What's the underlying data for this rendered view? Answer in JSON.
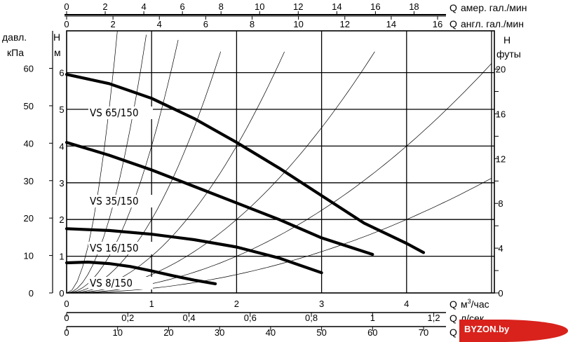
{
  "chart_data": {
    "type": "line",
    "series": [
      {
        "name": "VS 65/150",
        "x": [
          0,
          0.5,
          1.0,
          1.5,
          2.0,
          2.5,
          3.0,
          3.5,
          4.0,
          4.2
        ],
        "y": [
          5.95,
          5.7,
          5.3,
          4.75,
          4.1,
          3.4,
          2.65,
          1.9,
          1.35,
          1.1
        ]
      },
      {
        "name": "VS 35/150",
        "x": [
          0,
          0.5,
          1.0,
          1.5,
          2.0,
          2.5,
          3.0,
          3.6
        ],
        "y": [
          4.1,
          3.75,
          3.35,
          2.9,
          2.45,
          2.0,
          1.5,
          1.05
        ]
      },
      {
        "name": "VS 16/150",
        "x": [
          0,
          0.5,
          1.0,
          1.5,
          2.0,
          2.5,
          3.0
        ],
        "y": [
          1.75,
          1.7,
          1.6,
          1.45,
          1.25,
          0.95,
          0.55
        ]
      },
      {
        "name": "VS 8/150",
        "x": [
          0,
          0.25,
          0.5,
          0.75,
          1.0,
          1.25,
          1.5,
          1.75
        ],
        "y": [
          0.82,
          0.84,
          0.8,
          0.72,
          0.6,
          0.47,
          0.35,
          0.25
        ]
      }
    ],
    "system_curves_k": [
      20,
      8,
      4,
      2,
      1,
      0.5,
      0.25,
      0.125
    ],
    "xlim": [
      0,
      5
    ],
    "ylim": [
      0,
      6
    ],
    "grid": true,
    "axes": {
      "bottom": {
        "label_prefix": "Q",
        "label": "м³/час",
        "label_base": "м",
        "label_sup": "3",
        "label_rest": "/час",
        "ticks": [
          "0",
          "1",
          "2",
          "3",
          "4"
        ]
      },
      "bottom2": {
        "label_prefix": "Q",
        "label": "л/сек",
        "ticks": [
          "0",
          "0,2",
          "0,4",
          "0,6",
          "0,8",
          "1",
          "1,2"
        ]
      },
      "bottom3": {
        "label_prefix": "Q",
        "label": "",
        "ticks": [
          "0",
          "10",
          "20",
          "30",
          "40",
          "50",
          "60",
          "70"
        ]
      },
      "top1": {
        "label_prefix": "Q",
        "label": "амер. гал./мин",
        "ticks": [
          "0",
          "2",
          "4",
          "6",
          "8",
          "10",
          "12",
          "14",
          "16",
          "18"
        ]
      },
      "top2": {
        "label_prefix": "Q",
        "label": "англ. гал./мин",
        "ticks": [
          "0",
          "2",
          "4",
          "6",
          "8",
          "10",
          "12",
          "14",
          "16"
        ]
      },
      "left_m": {
        "label_letter": "H",
        "label": "м",
        "ticks": [
          "0",
          "1",
          "2",
          "3",
          "4",
          "5",
          "6"
        ]
      },
      "left_kpa": {
        "label_line1": "давл.",
        "label_line2": "кПа",
        "ticks": [
          "0",
          "10",
          "20",
          "30",
          "40",
          "50",
          "60"
        ]
      },
      "right_ft": {
        "label_letter": "H",
        "label": "футы",
        "ticks": [
          "0",
          "4",
          "8",
          "12",
          "16",
          "20"
        ]
      }
    }
  },
  "watermark": "BYZON.by"
}
